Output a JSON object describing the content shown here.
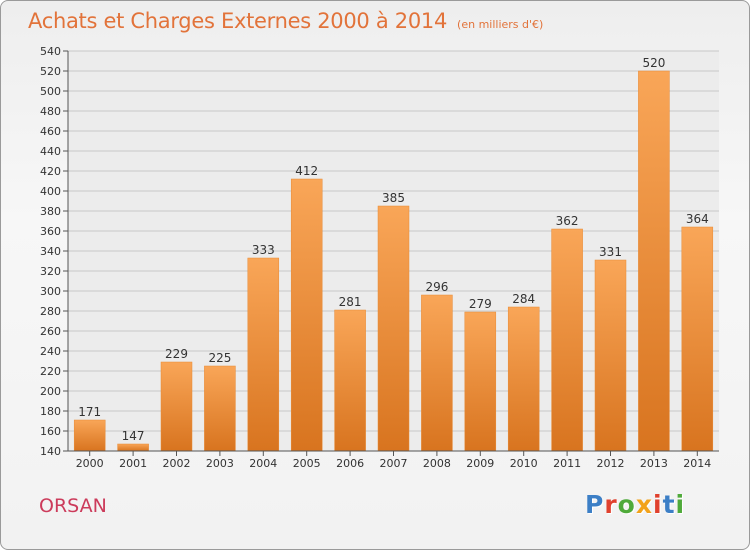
{
  "header": {
    "title": "Achats et Charges Externes 2000 à 2014",
    "subtitle": "(en milliers d'€)"
  },
  "footer": {
    "place": "ORSAN",
    "brand": [
      "P",
      "r",
      "o",
      "x",
      "i",
      "t",
      "i"
    ]
  },
  "colors": {
    "bar_top": "#f9a658",
    "bar_bottom": "#d8741f",
    "title": "#e2733a",
    "place": "#cc3b5b",
    "brand": [
      "#3c7fc6",
      "#e0412e",
      "#4faa3a",
      "#f2a21a",
      "#e0412e",
      "#3c7fc6",
      "#4faa3a"
    ]
  },
  "chart_data": {
    "type": "bar",
    "title": "Achats et Charges Externes 2000 à 2014",
    "subtitle": "(en milliers d'€)",
    "categories": [
      "2000",
      "2001",
      "2002",
      "2003",
      "2004",
      "2005",
      "2006",
      "2007",
      "2008",
      "2009",
      "2010",
      "2011",
      "2012",
      "2013",
      "2014"
    ],
    "values": [
      171,
      147,
      229,
      225,
      333,
      412,
      281,
      385,
      296,
      279,
      284,
      362,
      331,
      520,
      364
    ],
    "ylim": [
      140,
      540
    ],
    "ytick_step": 20,
    "grid": true,
    "legend": "none"
  }
}
